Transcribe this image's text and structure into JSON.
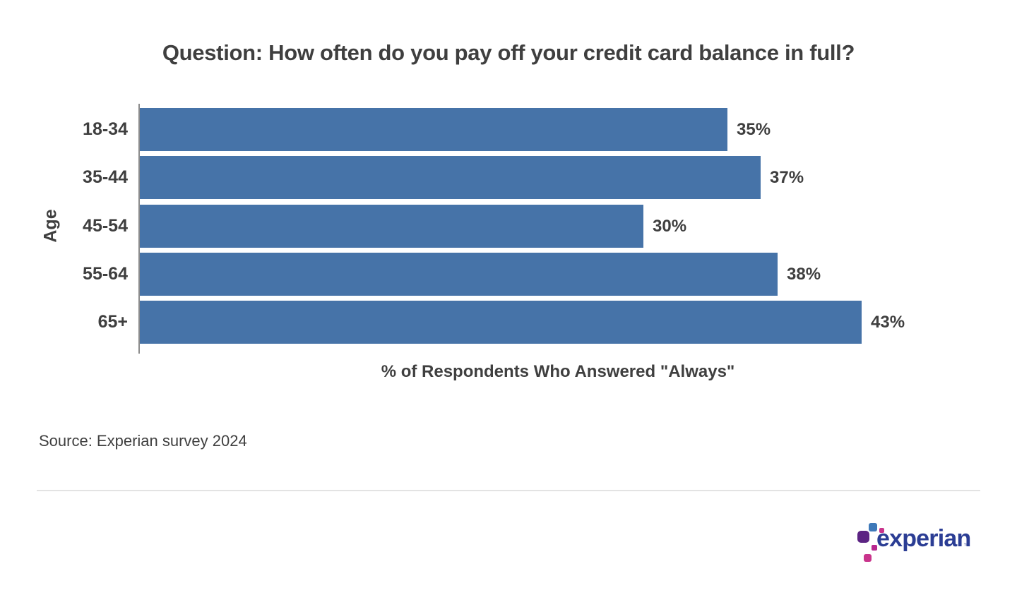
{
  "title": "Question: How often do you pay off your credit card balance in full?",
  "chart_data": {
    "type": "bar",
    "orientation": "horizontal",
    "title": "Question: How often do you pay off your credit card balance in full?",
    "categories": [
      "18-34",
      "35-44",
      "45-54",
      "55-64",
      "65+"
    ],
    "values": [
      35,
      37,
      30,
      38,
      43
    ],
    "value_labels": [
      "35%",
      "37%",
      "30%",
      "38%",
      "43%"
    ],
    "xlabel": "% of Respondents Who Answered \"Always\"",
    "ylabel": "Age",
    "xlim": [
      0,
      50
    ],
    "grid": false,
    "legend": "none",
    "bar_color": "#4673a8"
  },
  "source": "Source: Experian survey 2024",
  "footer": {
    "logo_text": "experian",
    "logo_tm": "™"
  },
  "colors": {
    "bar": "#4673a8",
    "text": "#3f3f3f",
    "axis": "#8c8c8c",
    "divider": "#e3e3e3",
    "logo_text": "#2b3d94",
    "logo_blue": "#3e79b9",
    "logo_purple": "#5c2483",
    "logo_magenta": "#c9348c",
    "logo_pink": "#b8288f"
  }
}
